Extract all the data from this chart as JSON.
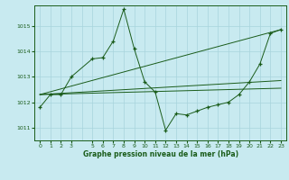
{
  "title": "Graphe pression niveau de la mer (hPa)",
  "background_color": "#c8eaf0",
  "grid_color": "#a8d4dc",
  "line_color": "#1a5c1a",
  "xlim": [
    -0.5,
    23.5
  ],
  "ylim": [
    1010.5,
    1015.8
  ],
  "yticks": [
    1011,
    1012,
    1013,
    1014,
    1015
  ],
  "xticks": [
    0,
    1,
    2,
    3,
    5,
    6,
    7,
    8,
    9,
    10,
    11,
    12,
    13,
    14,
    15,
    16,
    17,
    18,
    19,
    20,
    21,
    22,
    23
  ],
  "grid_xticks": [
    0,
    1,
    2,
    3,
    4,
    5,
    6,
    7,
    8,
    9,
    10,
    11,
    12,
    13,
    14,
    15,
    16,
    17,
    18,
    19,
    20,
    21,
    22,
    23
  ],
  "series": [
    {
      "x": [
        0,
        1,
        2,
        3,
        5,
        6,
        7,
        8,
        9,
        10,
        11,
        12,
        13,
        14,
        15,
        16,
        17,
        18,
        19,
        20,
        21,
        22,
        23
      ],
      "y": [
        1011.8,
        1012.3,
        1012.3,
        1013.0,
        1013.7,
        1013.75,
        1014.4,
        1015.65,
        1014.1,
        1012.8,
        1012.4,
        1010.9,
        1011.55,
        1011.5,
        1011.65,
        1011.8,
        1011.9,
        1012.0,
        1012.3,
        1012.8,
        1013.5,
        1014.7,
        1014.85
      ],
      "marker": true
    },
    {
      "x": [
        0,
        23
      ],
      "y": [
        1012.3,
        1014.85
      ],
      "marker": false
    },
    {
      "x": [
        0,
        23
      ],
      "y": [
        1012.3,
        1012.85
      ],
      "marker": false
    },
    {
      "x": [
        0,
        23
      ],
      "y": [
        1012.3,
        1012.55
      ],
      "marker": false
    }
  ]
}
